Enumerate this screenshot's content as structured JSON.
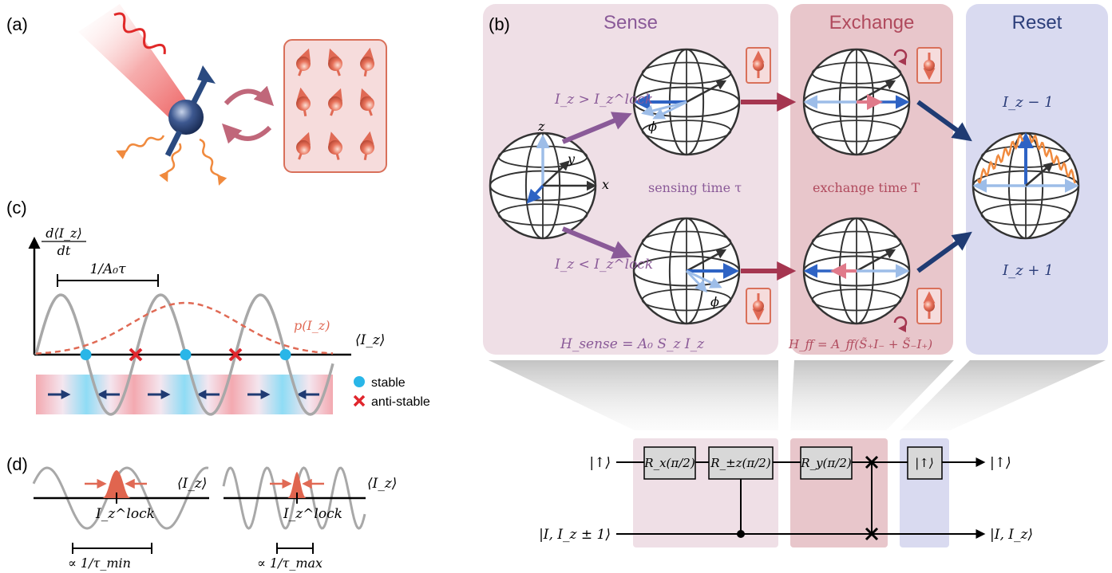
{
  "panels": {
    "a": "(a)",
    "b": "(b)",
    "c": "(c)",
    "d": "(d)"
  },
  "sections": {
    "sense": "Sense",
    "exchange": "Exchange",
    "reset": "Reset"
  },
  "colors": {
    "sense_bg": "#efdfe6",
    "exchange_bg": "#e8c6cb",
    "reset_bg": "#d9daf0",
    "sense_text": "#8a5a98",
    "exchange_text": "#b04a5d",
    "reset_text": "#2c3e7a",
    "spin_blue": "#1f3b73",
    "nuclear_red": "#e06a55",
    "stable": "#29b6e8",
    "antistable": "#e0262d"
  },
  "bloch": {
    "axis_z": "z",
    "axis_y": "y",
    "axis_x": "x",
    "phi": "ϕ",
    "cond_gt": "I_z > I_z^lock",
    "cond_lt": "I_z < I_z^lock",
    "sensing_time": "sensing time τ",
    "exchange_time": "exchange time T",
    "reset_minus": "I_z − 1",
    "reset_plus": "I_z + 1",
    "h_sense": "H_sense = A₀ S_z I_z",
    "h_ff": "H_ff = A_ff(S̃₊I₋ + S̃₋I₊)"
  },
  "panel_c": {
    "ylabel_num": "d⟨I_z⟩",
    "ylabel_den": "dt",
    "period": "1/A₀τ",
    "dist_label": "p(I_z)",
    "xlabel": "⟨I_z⟩",
    "legend": [
      {
        "label": "stable",
        "kind": "stable"
      },
      {
        "label": "anti-stable",
        "kind": "antistable"
      }
    ]
  },
  "panel_d": {
    "xlabel": "⟨I_z⟩",
    "lock_label": "I_z^lock",
    "scale_min": "∝ 1/τ_min",
    "scale_max": "∝ 1/τ_max"
  },
  "circuit": {
    "input_top": "|↑⟩",
    "input_bottom": "|I, I_z ± 1⟩",
    "output_top": "|↑⟩",
    "output_bottom": "|I, I_z⟩",
    "gates": [
      {
        "label": "R_x(π/2)"
      },
      {
        "label": "R_±z(π/2)"
      },
      {
        "label": "R_y(π/2)"
      },
      {
        "label": "|↑⟩"
      }
    ]
  }
}
